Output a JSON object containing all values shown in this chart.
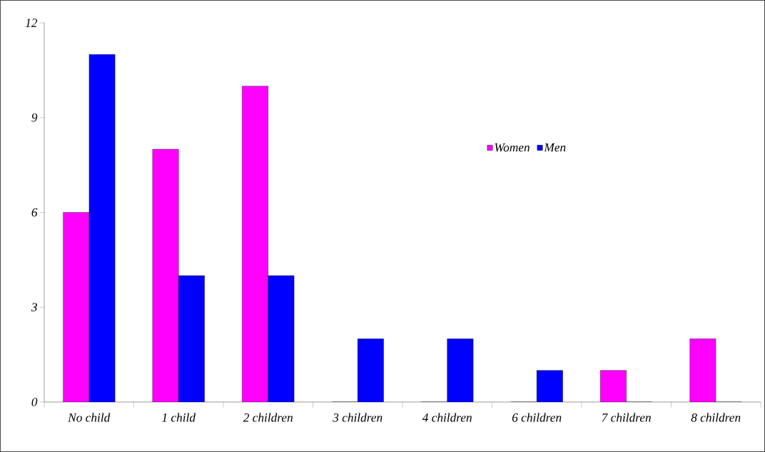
{
  "chart_data": {
    "type": "bar",
    "categories": [
      "No child",
      "1 child",
      "2 children",
      "3 children",
      "4 children",
      "6 children",
      "7 children",
      "8 children"
    ],
    "series": [
      {
        "name": "Women",
        "color": "#ff00ff",
        "values": [
          6,
          8,
          10,
          0,
          0,
          0,
          1,
          2
        ]
      },
      {
        "name": "Men",
        "color": "#0000ff",
        "values": [
          11,
          4,
          4,
          2,
          2,
          1,
          0,
          0
        ]
      }
    ],
    "ylim": [
      0,
      12
    ],
    "yticks": [
      0,
      3,
      6,
      9,
      12
    ],
    "legend": "right",
    "grid": false
  }
}
